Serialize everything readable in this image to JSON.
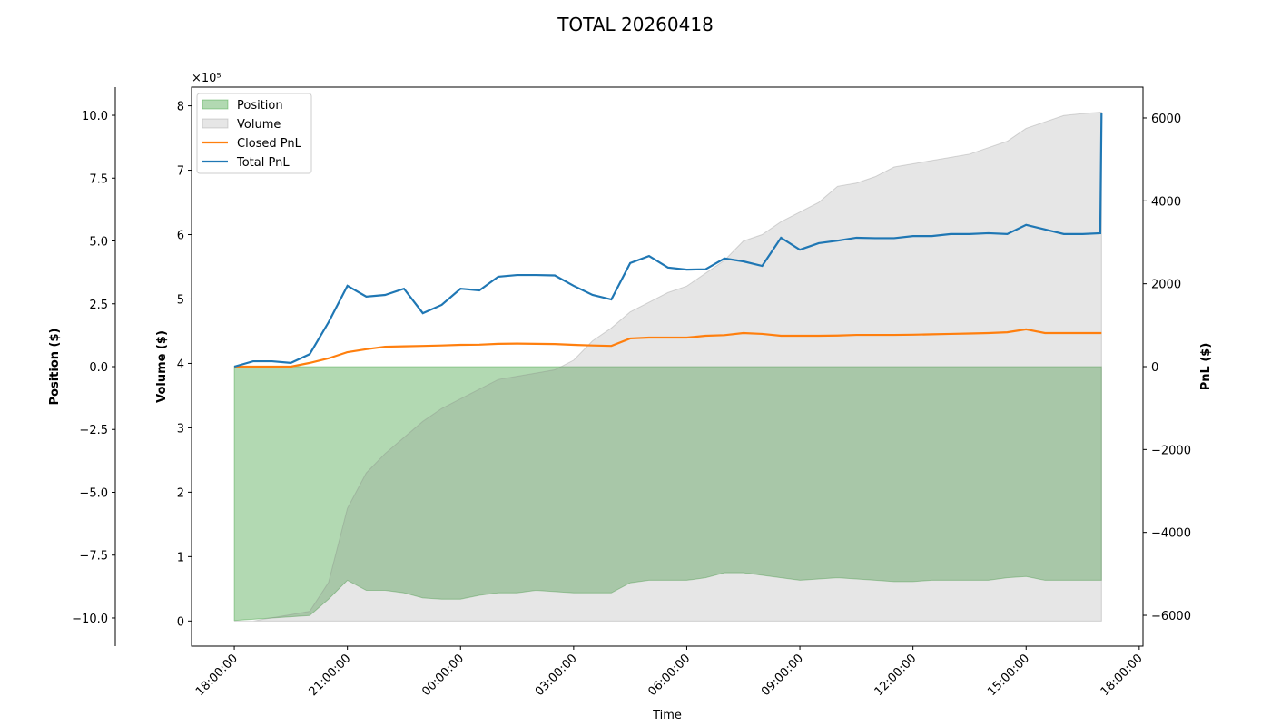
{
  "chart_data": {
    "type": "combo",
    "title": "TOTAL 20260418",
    "xlabel": "Time",
    "ylabel": "Volume ($)",
    "y_offset_label": "×10⁵",
    "y2label": "PnL ($)",
    "y3label": "Position ($)",
    "x": [
      "18:00:00",
      "18:30:00",
      "19:00:00",
      "19:30:00",
      "20:00:00",
      "20:30:00",
      "21:00:00",
      "21:30:00",
      "22:00:00",
      "22:30:00",
      "23:00:00",
      "23:30:00",
      "00:00:00",
      "00:30:00",
      "01:00:00",
      "01:30:00",
      "02:00:00",
      "02:30:00",
      "03:00:00",
      "03:30:00",
      "04:00:00",
      "04:30:00",
      "05:00:00",
      "05:30:00",
      "06:00:00",
      "06:30:00",
      "07:00:00",
      "07:30:00",
      "08:00:00",
      "08:30:00",
      "09:00:00",
      "09:30:00",
      "10:00:00",
      "10:30:00",
      "11:00:00",
      "11:30:00",
      "12:00:00",
      "12:30:00",
      "13:00:00",
      "13:30:00",
      "14:00:00",
      "14:30:00",
      "15:00:00",
      "15:30:00",
      "16:00:00",
      "16:30:00",
      "16:58:00",
      "17:00:00"
    ],
    "xlim": [
      "16:52:00",
      "18:06:00"
    ],
    "xticks": [
      "18:00:00",
      "21:00:00",
      "00:00:00",
      "03:00:00",
      "06:00:00",
      "09:00:00",
      "12:00:00",
      "15:00:00",
      "18:00:00"
    ],
    "ylim": [
      -0.39,
      8.29
    ],
    "yticks": [
      0,
      1,
      2,
      3,
      4,
      5,
      6,
      7,
      8
    ],
    "y2lim": [
      -6744,
      6744
    ],
    "y2ticks": [
      {
        "value": -6000,
        "label": "−6000"
      },
      {
        "value": -4000,
        "label": "−4000"
      },
      {
        "value": -2000,
        "label": "−2000"
      },
      0,
      2000,
      4000,
      6000
    ],
    "y3lim": [
      -11.12,
      11.12
    ],
    "y3ticks": [
      {
        "value": -10,
        "label": "−10.0"
      },
      {
        "value": -7.5,
        "label": "−7.5"
      },
      {
        "value": -5,
        "label": "−5.0"
      },
      {
        "value": -2.5,
        "label": "−2.5"
      },
      {
        "value": 0,
        "label": "0.0"
      },
      2.5,
      {
        "value": 5,
        "label": "5.0"
      },
      7.5,
      {
        "value": 10,
        "label": "10.0"
      }
    ],
    "legend": "upper left",
    "series": [
      {
        "name": "Position",
        "kind": "area",
        "axis": "y3",
        "color": "green",
        "values": [
          -10.1,
          -10.05,
          -10.0,
          -9.95,
          -9.9,
          -9.25,
          -8.5,
          -8.9,
          -8.9,
          -9.0,
          -9.2,
          -9.25,
          -9.25,
          -9.1,
          -9.0,
          -9.0,
          -8.9,
          -8.95,
          -9.0,
          -9.0,
          -9.0,
          -8.6,
          -8.5,
          -8.5,
          -8.5,
          -8.4,
          -8.2,
          -8.2,
          -8.3,
          -8.4,
          -8.5,
          -8.45,
          -8.4,
          -8.45,
          -8.5,
          -8.55,
          -8.55,
          -8.5,
          -8.5,
          -8.5,
          -8.5,
          -8.4,
          -8.35,
          -8.5,
          -8.5,
          -8.5,
          -8.5,
          -8.5
        ]
      },
      {
        "name": "Volume",
        "kind": "area",
        "axis": "y",
        "color": "gray",
        "values": [
          0,
          0,
          0.05,
          0.1,
          0.15,
          0.6,
          1.75,
          2.3,
          2.6,
          2.85,
          3.1,
          3.3,
          3.45,
          3.6,
          3.75,
          3.8,
          3.85,
          3.9,
          4.05,
          4.35,
          4.55,
          4.8,
          4.95,
          5.1,
          5.2,
          5.4,
          5.6,
          5.9,
          6.0,
          6.2,
          6.35,
          6.5,
          6.75,
          6.8,
          6.9,
          7.05,
          7.1,
          7.15,
          7.2,
          7.25,
          7.35,
          7.45,
          7.65,
          7.75,
          7.85,
          7.88,
          7.9,
          7.9
        ]
      },
      {
        "name": "Closed PnL",
        "kind": "line",
        "axis": "y2",
        "color": "#ff7f0e",
        "values": [
          0,
          0,
          0,
          0,
          90,
          200,
          350,
          420,
          480,
          490,
          500,
          510,
          525,
          530,
          550,
          555,
          550,
          545,
          525,
          510,
          500,
          680,
          700,
          700,
          700,
          745,
          760,
          810,
          790,
          745,
          745,
          745,
          750,
          765,
          765,
          765,
          770,
          780,
          790,
          800,
          810,
          830,
          900,
          810,
          810,
          810,
          810,
          810
        ]
      },
      {
        "name": "Total PnL",
        "kind": "line",
        "axis": "y2",
        "color": "#1f77b4",
        "values": [
          0,
          130,
          130,
          90,
          300,
          1070,
          1950,
          1690,
          1730,
          1880,
          1290,
          1490,
          1880,
          1840,
          2170,
          2210,
          2210,
          2200,
          1950,
          1730,
          1620,
          2500,
          2670,
          2390,
          2340,
          2350,
          2610,
          2540,
          2430,
          3110,
          2820,
          2980,
          3040,
          3110,
          3100,
          3100,
          3150,
          3150,
          3200,
          3200,
          3220,
          3200,
          3420,
          3310,
          3200,
          3200,
          3220,
          6110
        ]
      }
    ]
  }
}
